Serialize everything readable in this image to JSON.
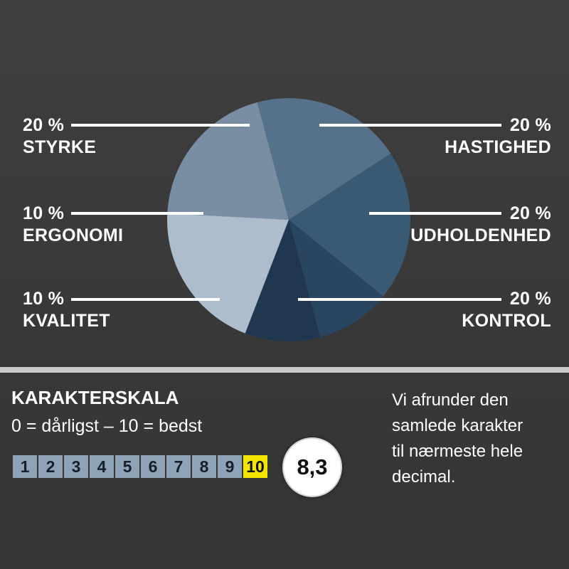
{
  "chart_data": {
    "type": "pie",
    "slices": [
      {
        "label": "HASTIGHED",
        "percent_label": "20 %",
        "value": 20,
        "color": "#7a8ea3"
      },
      {
        "label": "UDHOLDENHED",
        "percent_label": "20 %",
        "value": 20,
        "color": "#56728b"
      },
      {
        "label": "KONTROL",
        "percent_label": "20 %",
        "value": 20,
        "color": "#3a5a73"
      },
      {
        "label": "KVALITET",
        "percent_label": "10 %",
        "value": 10,
        "color": "#2a4560"
      },
      {
        "label": "ERGONOMI",
        "percent_label": "10 %",
        "value": 10,
        "color": "#213750"
      },
      {
        "label": "STYRKE",
        "percent_label": "20 %",
        "value": 20,
        "color": "#adbdcc"
      }
    ]
  },
  "scale": {
    "title": "KARAKTERSKALA",
    "subtitle": "0 = dårligst – 10 = bedst",
    "numbers": [
      "1",
      "2",
      "3",
      "4",
      "5",
      "6",
      "7",
      "8",
      "9",
      "10"
    ],
    "highlighted": "10",
    "score": "8,3",
    "highlight_color": "#f2e600",
    "box_color": "#8fa3b6"
  },
  "note": {
    "line1": "Vi afrunder den",
    "line2": "samlede karakter",
    "line3": "til nærmeste hele",
    "line4": "decimal."
  }
}
